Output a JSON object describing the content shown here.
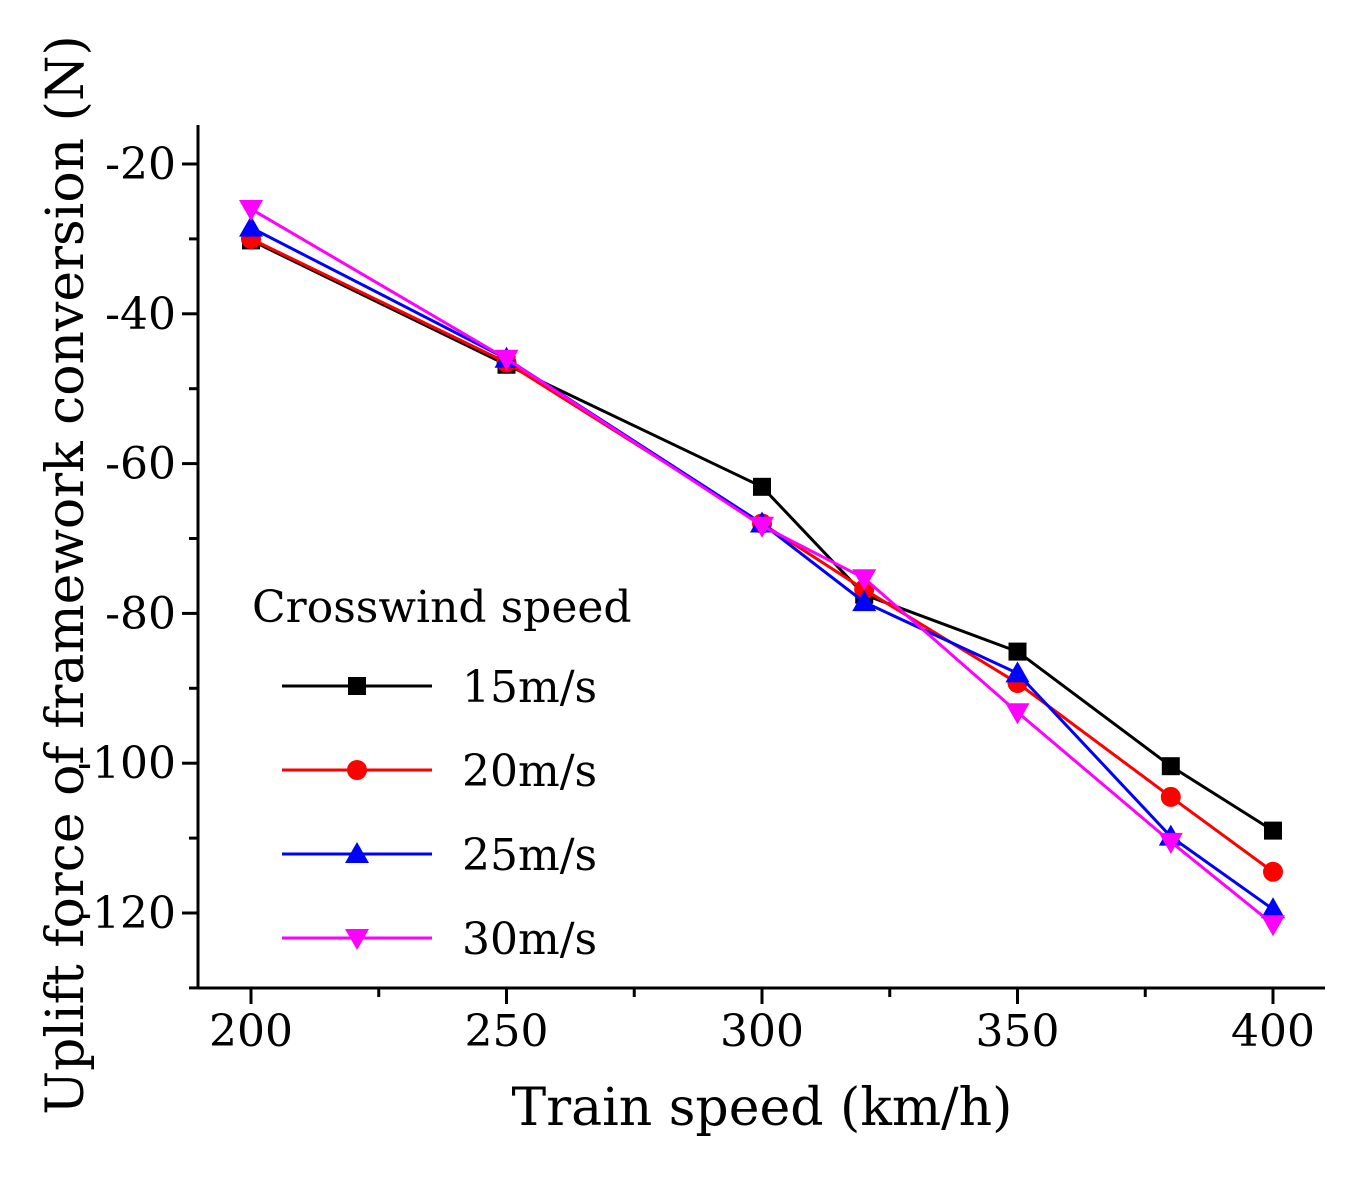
{
  "chart_data": {
    "type": "line",
    "title": "",
    "xlabel": "Train speed (km/h)",
    "ylabel": "Uplift force of framework conversion (N)",
    "xlim": [
      190,
      410
    ],
    "ylim": [
      -130,
      -20
    ],
    "xticks": [
      200,
      250,
      300,
      350,
      400
    ],
    "yticks": [
      -20,
      -40,
      -60,
      -80,
      -100,
      -120
    ],
    "x": [
      200,
      250,
      300,
      320,
      350,
      380,
      400
    ],
    "legend_title": "Crosswind speed",
    "legend_position": "lower-left",
    "series": [
      {
        "name": "15m/s",
        "color": "#000000",
        "marker": "square",
        "values": [
          -30.2,
          -46.8,
          -63.1,
          -77.5,
          -85.1,
          -100.4,
          -109.0
        ]
      },
      {
        "name": "20m/s",
        "color": "#ff0000",
        "marker": "circle",
        "values": [
          -30.0,
          -46.5,
          -68.0,
          -76.8,
          -89.3,
          -104.5,
          -114.5
        ]
      },
      {
        "name": "25m/s",
        "color": "#0000ff",
        "marker": "triangle-up",
        "values": [
          -28.5,
          -46.0,
          -68.0,
          -78.5,
          -88.0,
          -109.8,
          -119.5
        ]
      },
      {
        "name": "30m/s",
        "color": "#ff00ff",
        "marker": "triangle-down",
        "values": [
          -26.0,
          -46.0,
          -68.3,
          -75.3,
          -93.2,
          -110.5,
          -121.5
        ]
      }
    ]
  }
}
